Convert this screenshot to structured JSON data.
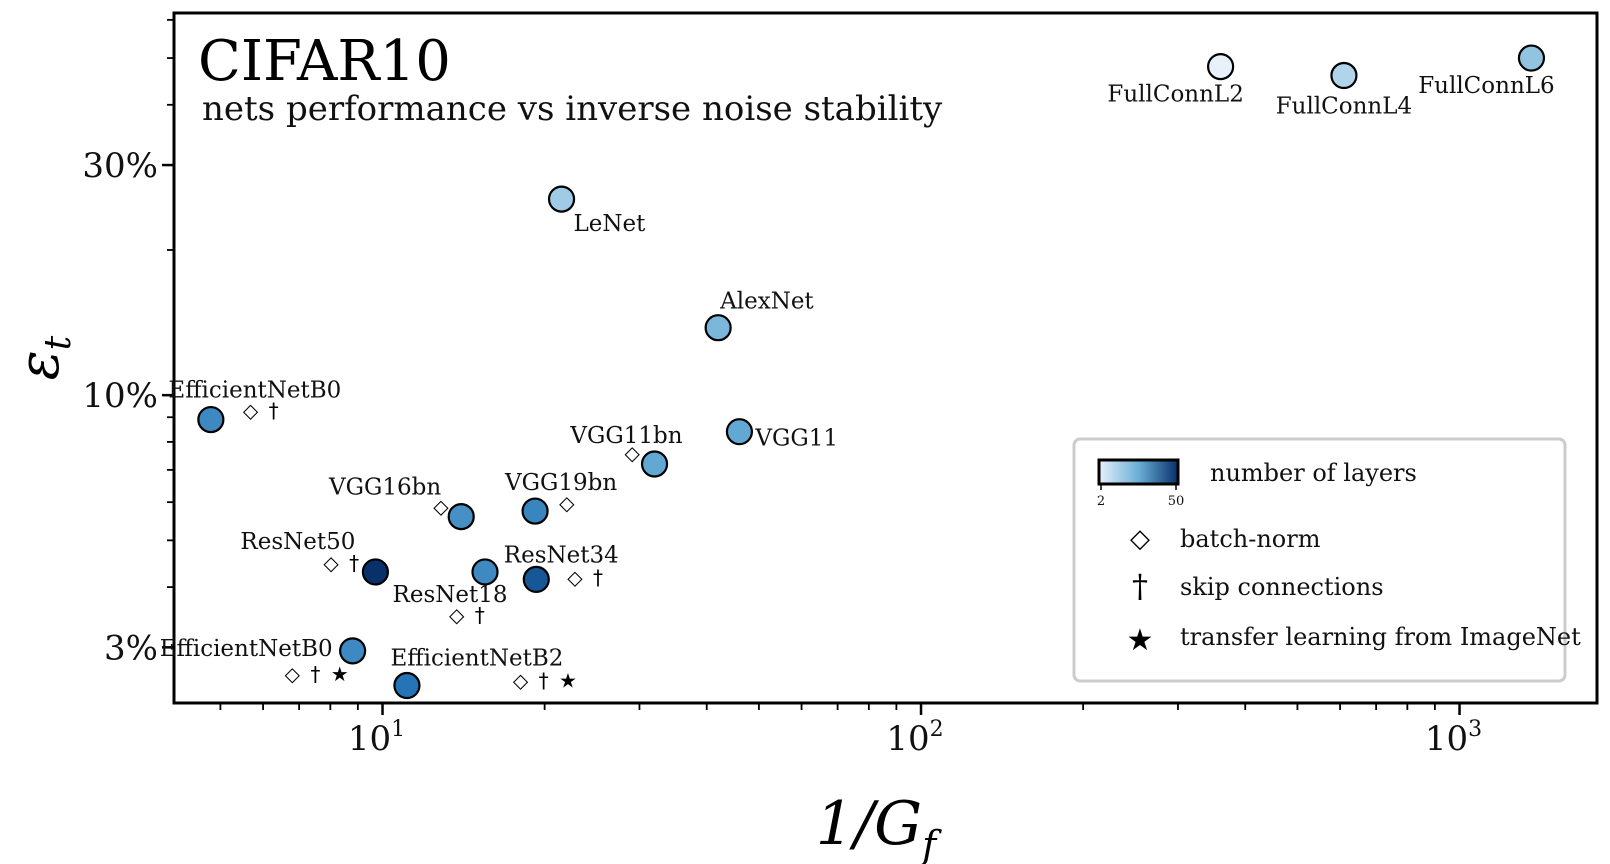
{
  "chart_data": {
    "type": "scatter",
    "title": "CIFAR10",
    "subtitle": "nets performance vs inverse noise stability",
    "xlabel": "1/G",
    "xlabel_sub": "f",
    "ylabel": "ε",
    "ylabel_sub": "t",
    "x_scale": "log",
    "y_scale": "log",
    "xlim": [
      4.1,
      1800
    ],
    "ylim": [
      2.3,
      62
    ],
    "x_ticks": [
      {
        "value": 10,
        "base": "10",
        "exp": "1"
      },
      {
        "value": 100,
        "base": "10",
        "exp": "2"
      },
      {
        "value": 1000,
        "base": "10",
        "exp": "3"
      }
    ],
    "y_ticks": [
      {
        "value": 3,
        "label": "3%"
      },
      {
        "value": 10,
        "label": "10%"
      },
      {
        "value": 30,
        "label": "30%"
      }
    ],
    "colorbar": {
      "label": "number of layers",
      "min": 2,
      "max": 50,
      "min_label": "2",
      "max_label": "50",
      "color_low": "#e8f1fa",
      "color_high": "#08306b"
    },
    "legend": {
      "position": "lower-right",
      "items": [
        {
          "symbol": "◇",
          "label": "batch-norm"
        },
        {
          "symbol": "†",
          "label": "skip connections"
        },
        {
          "symbol": "★",
          "label": "transfer learning from ImageNet"
        }
      ]
    },
    "points": [
      {
        "name": "FullConnL2",
        "x": 360,
        "y": 48,
        "layers": 2,
        "markers": "",
        "label_pos": "below-left"
      },
      {
        "name": "FullConnL4",
        "x": 610,
        "y": 46,
        "layers": 4,
        "markers": "",
        "label_pos": "below"
      },
      {
        "name": "FullConnL6",
        "x": 1360,
        "y": 50,
        "layers": 6,
        "markers": "",
        "label_pos": "below-left"
      },
      {
        "name": "LeNet",
        "x": 21.5,
        "y": 25.5,
        "layers": 5,
        "markers": "",
        "label_pos": "below-right"
      },
      {
        "name": "AlexNet",
        "x": 42,
        "y": 13.8,
        "layers": 8,
        "markers": "",
        "label_pos": "above-right"
      },
      {
        "name": "VGG11",
        "x": 46,
        "y": 8.4,
        "layers": 11,
        "markers": "",
        "label_pos": "right"
      },
      {
        "name": "VGG11bn",
        "x": 32,
        "y": 7.2,
        "layers": 11,
        "markers": "◇",
        "label_pos": "above-left"
      },
      {
        "name": "VGG16bn",
        "x": 14,
        "y": 5.6,
        "layers": 16,
        "markers": "◇",
        "label_pos": "above-left"
      },
      {
        "name": "VGG19bn",
        "x": 19.2,
        "y": 5.75,
        "layers": 19,
        "markers": "◇",
        "label_pos": "above"
      },
      {
        "name": "EfficientNetB0",
        "x": 4.8,
        "y": 8.9,
        "layers": 18,
        "markers": "◇ †",
        "label_pos": "above"
      },
      {
        "name": "ResNet50",
        "x": 9.7,
        "y": 4.3,
        "layers": 50,
        "markers": "◇ †",
        "label_pos": "above-left"
      },
      {
        "name": "ResNet18",
        "x": 15.5,
        "y": 4.3,
        "layers": 18,
        "markers": "◇ †",
        "label_pos": "below-left"
      },
      {
        "name": "ResNet34",
        "x": 19.3,
        "y": 4.15,
        "layers": 34,
        "markers": "◇ †",
        "label_pos": "above"
      },
      {
        "name": "EfficientNetB0",
        "x": 8.8,
        "y": 2.95,
        "layers": 18,
        "markers": "◇ † ★",
        "label_pos": "left"
      },
      {
        "name": "EfficientNetB2",
        "x": 11.1,
        "y": 2.5,
        "layers": 25,
        "markers": "◇ † ★",
        "label_pos": "above"
      }
    ]
  }
}
